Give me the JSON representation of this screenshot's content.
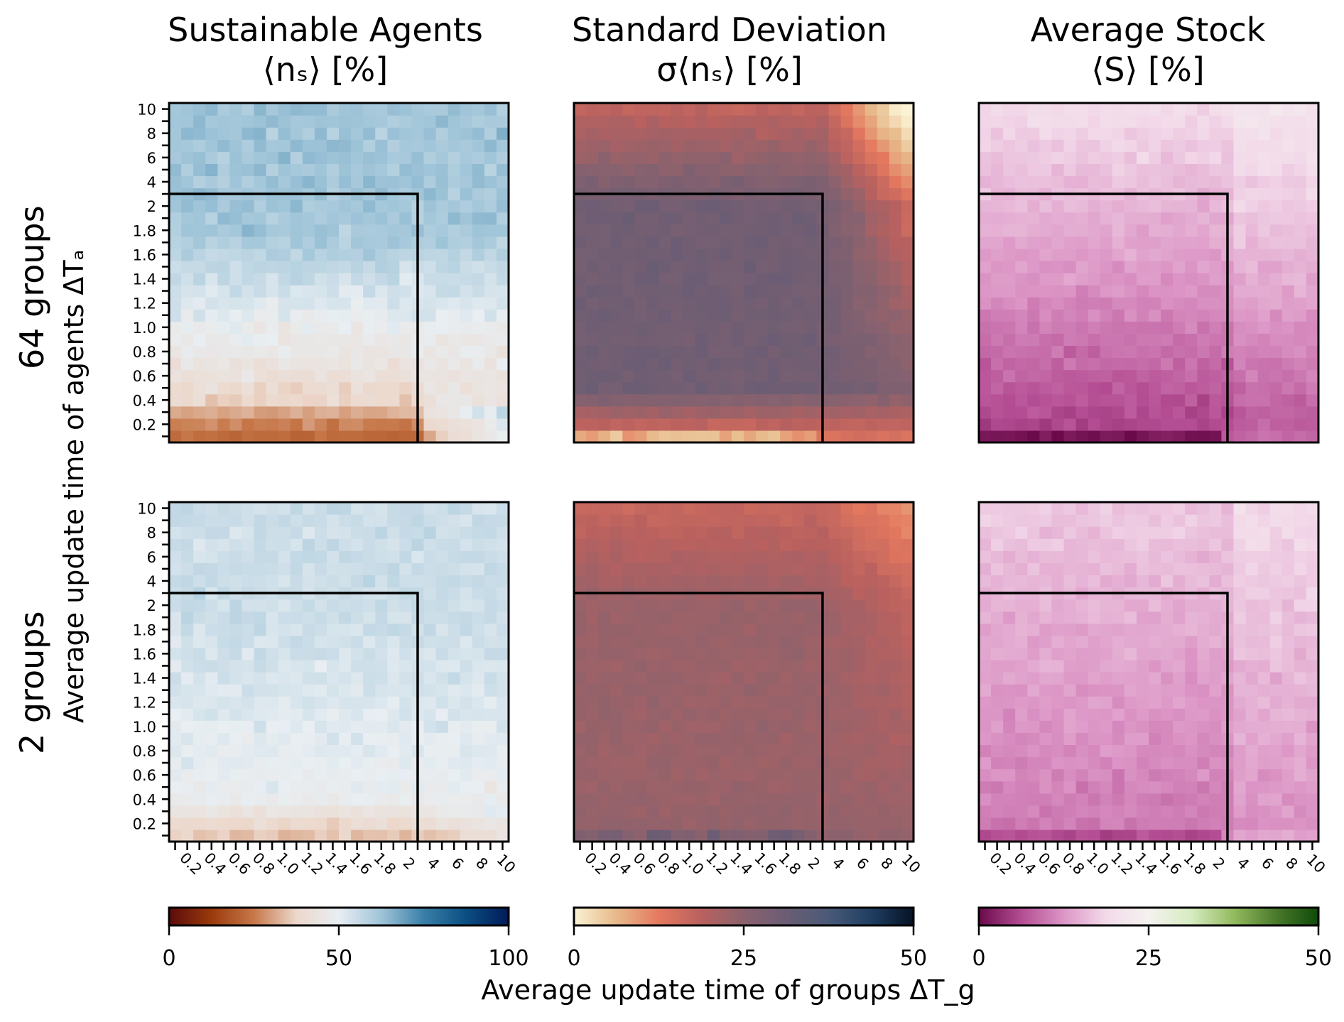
{
  "chart_data": {
    "type": "heatmap",
    "column_titles": [
      {
        "line1": "Sustainable Agents",
        "line2": "⟨nₛ⟩ [%]"
      },
      {
        "line1": "Standard Deviation",
        "line2": "σ⟨nₛ⟩ [%]"
      },
      {
        "line1": "Average Stock",
        "line2": "⟨S⟩ [%]"
      }
    ],
    "row_labels": [
      "64 groups",
      "2 groups"
    ],
    "ylabel": "Average update time of agents ΔTₐ",
    "xlabel": "Average update time of groups ΔT_g",
    "x_tick_labels": [
      "0.2",
      "0.4",
      "0.6",
      "0.8",
      "1.0",
      "1.2",
      "1.4",
      "1.6",
      "1.8",
      "2",
      "4",
      "6",
      "8",
      "10"
    ],
    "y_tick_labels": [
      "0.2",
      "0.4",
      "0.6",
      "0.8",
      "1.0",
      "1.2",
      "1.4",
      "1.6",
      "1.8",
      "2",
      "4",
      "6",
      "8",
      "10"
    ],
    "grid_size": 28,
    "highlight_region": {
      "x_max": 2,
      "y_max": 2,
      "style": "black outline"
    },
    "colorbars": [
      {
        "name": "vik_r",
        "range": [
          0,
          100
        ],
        "ticks": [
          "0",
          "50",
          "100"
        ],
        "stops": [
          "#5a0b0b",
          "#9a3a0c",
          "#c7784a",
          "#ecd8cc",
          "#e8eef2",
          "#9fc4d8",
          "#3a7fa8",
          "#0b4e82",
          "#021a58"
        ]
      },
      {
        "name": "lipari_r",
        "range": [
          0,
          50
        ],
        "ticks": [
          "0",
          "25",
          "50"
        ],
        "stops": [
          "#fbf2d3",
          "#e6b98a",
          "#e5795f",
          "#b9615f",
          "#8a626e",
          "#6b5d74",
          "#4a5a78",
          "#1f3e62",
          "#061224"
        ]
      },
      {
        "name": "PiYG",
        "range": [
          0,
          50
        ],
        "ticks": [
          "0",
          "25",
          "50"
        ],
        "stops": [
          "#6a0a4a",
          "#b44d93",
          "#dc96c6",
          "#f3dbea",
          "#f4f2ef",
          "#d7ebc1",
          "#93bb5f",
          "#4a7a2b",
          "#0f4a0a"
        ]
      }
    ],
    "panels": [
      {
        "row": "64 groups",
        "metric": "Sustainable Agents",
        "colorbar": 0,
        "summary": {
          "bottom_left_value": 22,
          "low_dTa_value": 30,
          "high_dTa_value": 62,
          "low_dTa_high_dTg_value": 44,
          "noise": 5
        }
      },
      {
        "row": "64 groups",
        "metric": "Standard Deviation",
        "colorbar": 1,
        "summary": {
          "bottom_left_value": 4,
          "low_dTa_value": 14,
          "center_value": 30,
          "high_dTa_value": 18,
          "top_right_value": 10,
          "noise": 2
        }
      },
      {
        "row": "64 groups",
        "metric": "Average Stock",
        "colorbar": 2,
        "summary": {
          "bottom_left_value": 1,
          "low_dTa_value": 5,
          "center_value": 12,
          "high_dTa_value": 19,
          "noise": 2
        }
      },
      {
        "row": "2 groups",
        "metric": "Sustainable Agents",
        "colorbar": 0,
        "summary": {
          "bottom_left_value": 35,
          "low_dTa_value": 46,
          "center_value": 55,
          "high_dTa_value": 55,
          "noise": 4
        }
      },
      {
        "row": "2 groups",
        "metric": "Standard Deviation",
        "colorbar": 1,
        "summary": {
          "bottom_left_value": 25,
          "low_dTa_value": 24,
          "center_value": 23,
          "high_dTa_value": 17,
          "top_right_value": 16,
          "noise": 1.5
        }
      },
      {
        "row": "2 groups",
        "metric": "Average Stock",
        "colorbar": 2,
        "summary": {
          "bottom_left_value": 6,
          "low_dTa_value": 10,
          "center_value": 13,
          "high_dTa_value": 17,
          "noise": 2
        }
      }
    ]
  }
}
